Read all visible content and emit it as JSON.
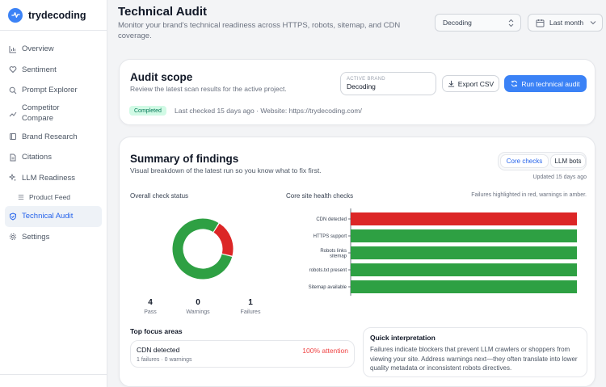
{
  "app": {
    "name": "trydecoding"
  },
  "nav": {
    "overview": "Overview",
    "sentiment": "Sentiment",
    "prompt_explorer": "Prompt Explorer",
    "competitor_compare": "Competitor Compare",
    "brand_research": "Brand Research",
    "citations": "Citations",
    "llm_readiness": "LLM Readiness",
    "product_feed": "Product Feed",
    "technical_audit": "Technical Audit",
    "settings": "Settings"
  },
  "header": {
    "title": "Technical Audit",
    "subtitle": "Monitor your brand's technical readiness across HTTPS, robots, sitemap, and CDN coverage.",
    "brand_select": "Decoding",
    "range_select": "Last month"
  },
  "scope": {
    "title": "Audit scope",
    "subtitle": "Review the latest scan results for the active project.",
    "active_brand_label": "ACTIVE BRAND",
    "active_brand_value": "Decoding",
    "export_label": "Export CSV",
    "run_label": "Run technical audit",
    "status": "Completed",
    "last_checked": "Last checked 15 days ago · Website: https://trydecoding.com/"
  },
  "summary": {
    "title": "Summary of findings",
    "subtitle": "Visual breakdown of the latest run so you know what to fix first.",
    "tab_core": "Core checks",
    "tab_llm": "LLM bots",
    "updated": "Updated 15 days ago",
    "overall_label": "Overall check status",
    "core_label": "Core site health checks",
    "hint": "Failures highlighted in red, warnings in amber.",
    "stats": {
      "pass_value": "4",
      "pass_label": "Pass",
      "warn_value": "0",
      "warn_label": "Warnings",
      "fail_value": "1",
      "fail_label": "Failures"
    },
    "focus_title": "Top focus areas",
    "focus": {
      "name": "CDN detected",
      "meta": "1 failures · 0 warnings",
      "attention": "100% attention"
    },
    "quick_title": "Quick interpretation",
    "quick_body": "Failures indicate blockers that prevent LLM crawlers or shoppers from viewing your site. Address warnings next—they often translate into lower quality metadata or inconsistent robots directives."
  },
  "colors": {
    "accent": "#3b82f6",
    "pass": "#2ea043",
    "fail": "#dc2626"
  },
  "chart_data": [
    {
      "type": "pie",
      "categories": [
        "Pass",
        "Warnings",
        "Failures"
      ],
      "values": [
        4,
        0,
        1
      ],
      "colors": [
        "#2ea043",
        "#f59e0b",
        "#dc2626"
      ]
    },
    {
      "type": "bar",
      "orientation": "horizontal",
      "categories": [
        "CDN detected",
        "HTTPS support",
        "Robots links sitemap",
        "robots.txt present",
        "Sitemap available"
      ],
      "category_lines": [
        [
          "CDN detected"
        ],
        [
          "HTTPS support"
        ],
        [
          "Robots links",
          "sitemap"
        ],
        [
          "robots.txt present"
        ],
        [
          "Sitemap available"
        ]
      ],
      "values": [
        1,
        1,
        1,
        1,
        1
      ],
      "status": [
        "fail",
        "pass",
        "pass",
        "pass",
        "pass"
      ],
      "colors": [
        "#dc2626",
        "#2ea043",
        "#2ea043",
        "#2ea043",
        "#2ea043"
      ]
    }
  ]
}
